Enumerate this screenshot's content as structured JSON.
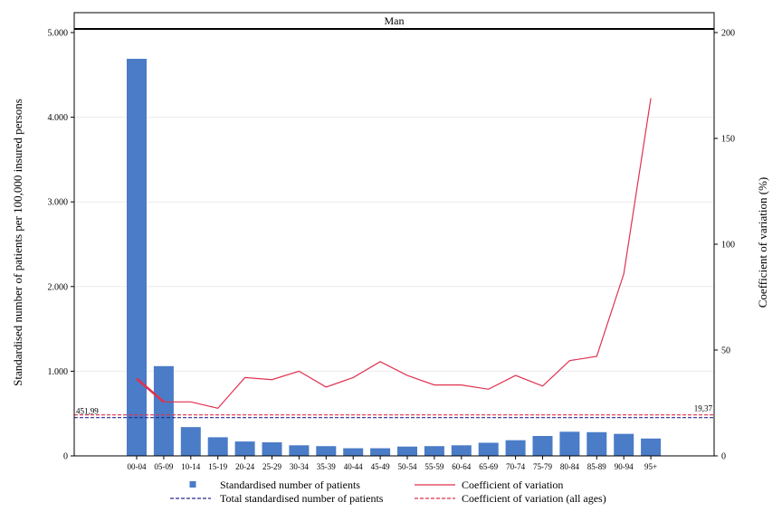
{
  "chart_data": {
    "type": "bar",
    "panel_title": "Man",
    "categories": [
      "00-04",
      "05-09",
      "10-14",
      "15-19",
      "20-24",
      "25-29",
      "30-34",
      "35-39",
      "40-44",
      "45-49",
      "50-54",
      "55-59",
      "60-64",
      "65-69",
      "70-74",
      "75-79",
      "80-84",
      "85-89",
      "90-94",
      "95+"
    ],
    "series": [
      {
        "name": "Standardised number of patients",
        "axis": "left",
        "kind": "bar",
        "color": "#4a7cc7",
        "values": [
          4690,
          1060,
          340,
          220,
          170,
          160,
          125,
          115,
          90,
          90,
          110,
          115,
          125,
          155,
          185,
          235,
          285,
          280,
          260,
          205
        ]
      },
      {
        "name": "Coefficient of variation",
        "axis": "right",
        "kind": "line",
        "color": "#e0314f",
        "values": [
          36.5,
          25.5,
          25.5,
          22.5,
          37,
          36,
          40,
          32.5,
          37,
          44.5,
          38,
          33.5,
          33.5,
          31.5,
          38,
          33,
          45,
          47,
          86,
          169
        ]
      }
    ],
    "reference_lines": [
      {
        "name": "Total standardised number of patients",
        "axis": "left",
        "value": 451.99,
        "label": "451,99",
        "color": "#2b2b8f"
      },
      {
        "name": "Coefficient of variation (all ages)",
        "axis": "right",
        "value": 19.37,
        "label": "19,37",
        "color": "#e0314f"
      }
    ],
    "ylabel": "Standardised number of patients per 100,000 insured persons",
    "y2label": "Coefficient of variation (%)",
    "ylim": [
      0,
      5000
    ],
    "y2lim": [
      0,
      200
    ],
    "yticks": [
      0,
      1000,
      2000,
      3000,
      4000,
      5000
    ],
    "yticklabels": [
      "0",
      "1.000",
      "2.000",
      "3.000",
      "4.000",
      "5.000"
    ],
    "y2ticks": [
      0,
      50,
      100,
      150,
      200
    ],
    "y2ticklabels": [
      "0",
      "50",
      "100",
      "150",
      "200"
    ],
    "grid": true,
    "legend_position": "bottom"
  },
  "legend": {
    "items": [
      {
        "label": "Standardised number of patients",
        "symbol": "square",
        "color": "#4a7cc7"
      },
      {
        "label": "Coefficient of variation",
        "symbol": "line",
        "color": "#e0314f"
      },
      {
        "label": "Total standardised number of patients",
        "symbol": "dash",
        "color": "#2b2b8f"
      },
      {
        "label": "Coefficient of variation (all ages)",
        "symbol": "dash",
        "color": "#e0314f"
      }
    ]
  }
}
